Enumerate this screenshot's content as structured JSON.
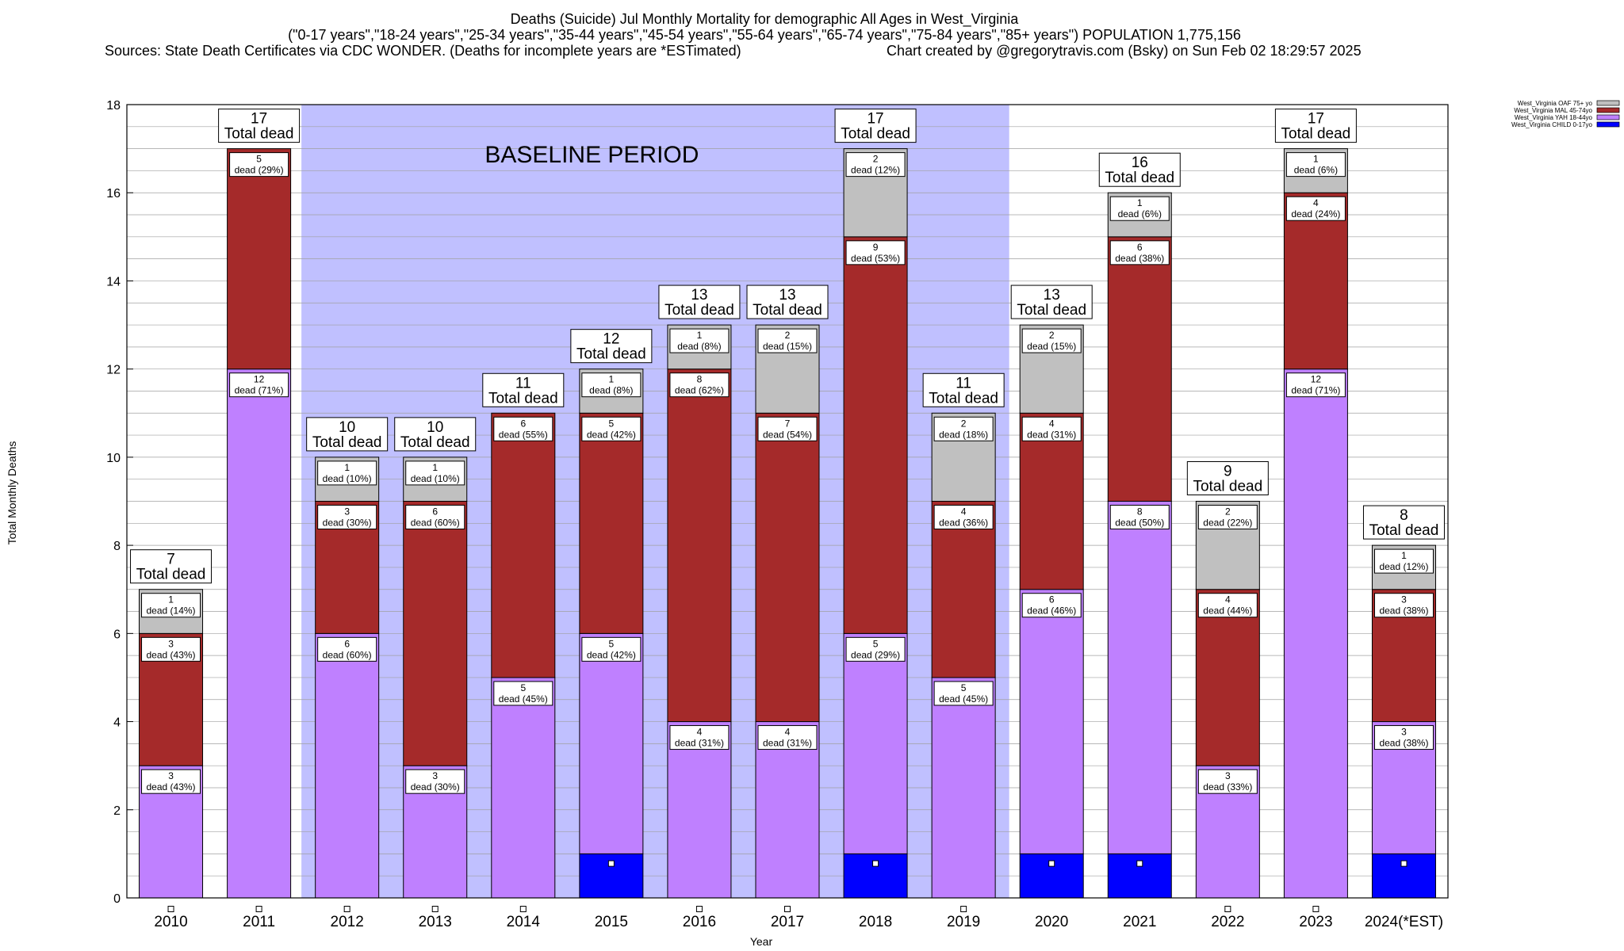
{
  "header": {
    "title": "Deaths (Suicide) Jul Monthly Mortality for demographic All Ages in West_Virginia",
    "subtitle": "(\"0-17 years\",\"18-24 years\",\"25-34 years\",\"35-44 years\",\"45-54 years\",\"55-64 years\",\"65-74 years\",\"75-84 years\",\"85+ years\") POPULATION 1,775,156",
    "sources": "Sources: State Death Certificates via CDC WONDER. (Deaths for incomplete years are *ESTimated)",
    "credit": "Chart created by @gregorytravis.com (Bsky) on Sun Feb 02 18:29:57 2025"
  },
  "chart_data": {
    "type": "bar",
    "stacked": true,
    "categories": [
      "2010",
      "2011",
      "2012",
      "2013",
      "2014",
      "2015",
      "2016",
      "2017",
      "2018",
      "2019",
      "2020",
      "2021",
      "2022",
      "2023",
      "2024(*EST)"
    ],
    "series": [
      {
        "name": "West_Virginia CHILD 0-17yo",
        "color": "#0000ff",
        "values": [
          0,
          0,
          0,
          0,
          0,
          1,
          0,
          0,
          1,
          0,
          1,
          1,
          0,
          0,
          1
        ]
      },
      {
        "name": "West_Virginia YAH 18-44yo",
        "color": "#bf80ff",
        "values": [
          3,
          12,
          6,
          3,
          5,
          5,
          4,
          4,
          5,
          5,
          6,
          8,
          3,
          12,
          3
        ]
      },
      {
        "name": "West_Virginia MAL 45-74yo",
        "color": "#a52a2a",
        "values": [
          3,
          5,
          3,
          6,
          6,
          5,
          8,
          7,
          9,
          4,
          4,
          6,
          4,
          4,
          3
        ]
      },
      {
        "name": "West_Virginia OAF 75+ yo",
        "color": "#c0c0c0",
        "values": [
          1,
          0,
          1,
          1,
          0,
          1,
          1,
          2,
          2,
          2,
          2,
          1,
          2,
          1,
          1
        ]
      }
    ],
    "segment_labels": [
      [
        null,
        "3",
        "3",
        "1"
      ],
      [
        null,
        "12",
        "5",
        null
      ],
      [
        null,
        "6",
        "3",
        "1"
      ],
      [
        null,
        "3",
        "6",
        "1"
      ],
      [
        null,
        "5",
        "6",
        null
      ],
      [
        null,
        "5",
        "5",
        "1"
      ],
      [
        null,
        "4",
        "8",
        "1"
      ],
      [
        null,
        "4",
        "7",
        "2"
      ],
      [
        null,
        "5",
        "9",
        "2"
      ],
      [
        null,
        "5",
        "4",
        "2"
      ],
      [
        null,
        "6",
        "4",
        "2"
      ],
      [
        null,
        "8",
        "6",
        "1"
      ],
      [
        null,
        "3",
        "4",
        "2"
      ],
      [
        null,
        "12",
        "4",
        "1"
      ],
      [
        null,
        "3",
        "3",
        "1"
      ]
    ],
    "segment_pct_labels": [
      [
        null,
        "dead (43%)",
        "dead (43%)",
        "dead (14%)"
      ],
      [
        null,
        "dead (71%)",
        "dead (29%)",
        null
      ],
      [
        null,
        "dead (60%)",
        "dead (30%)",
        "dead (10%)"
      ],
      [
        null,
        "dead (30%)",
        "dead (60%)",
        "dead (10%)"
      ],
      [
        null,
        "dead (45%)",
        "dead (55%)",
        null
      ],
      [
        null,
        "dead (42%)",
        "dead (42%)",
        "dead (8%)"
      ],
      [
        null,
        "dead (31%)",
        "dead (62%)",
        "dead (8%)"
      ],
      [
        null,
        "dead (31%)",
        "dead (54%)",
        "dead (15%)"
      ],
      [
        null,
        "dead (29%)",
        "dead (53%)",
        "dead (12%)"
      ],
      [
        null,
        "dead (45%)",
        "dead (36%)",
        "dead (18%)"
      ],
      [
        null,
        "dead (46%)",
        "dead (31%)",
        "dead (15%)"
      ],
      [
        null,
        "dead (50%)",
        "dead (38%)",
        "dead (6%)"
      ],
      [
        null,
        "dead (33%)",
        "dead (44%)",
        "dead (22%)"
      ],
      [
        null,
        "dead (71%)",
        "dead (24%)",
        "dead (6%)"
      ],
      [
        null,
        "dead (38%)",
        "dead (38%)",
        "dead (12%)"
      ]
    ],
    "totals": [
      7,
      17,
      10,
      10,
      11,
      12,
      13,
      13,
      17,
      11,
      13,
      16,
      9,
      17,
      8
    ],
    "total_label": "Total dead",
    "baseline": {
      "label": "BASELINE PERIOD",
      "from": "2012",
      "to": "2019",
      "color": "#c0c0ff"
    },
    "xlabel": "Year",
    "ylabel": "Total Monthly Deaths",
    "ylim": [
      0,
      18
    ],
    "yticks": [
      0,
      2,
      4,
      6,
      8,
      10,
      12,
      14,
      16,
      18
    ],
    "ygrid_minor_step": 0.5,
    "grid": true,
    "legend_position": "top-right"
  }
}
